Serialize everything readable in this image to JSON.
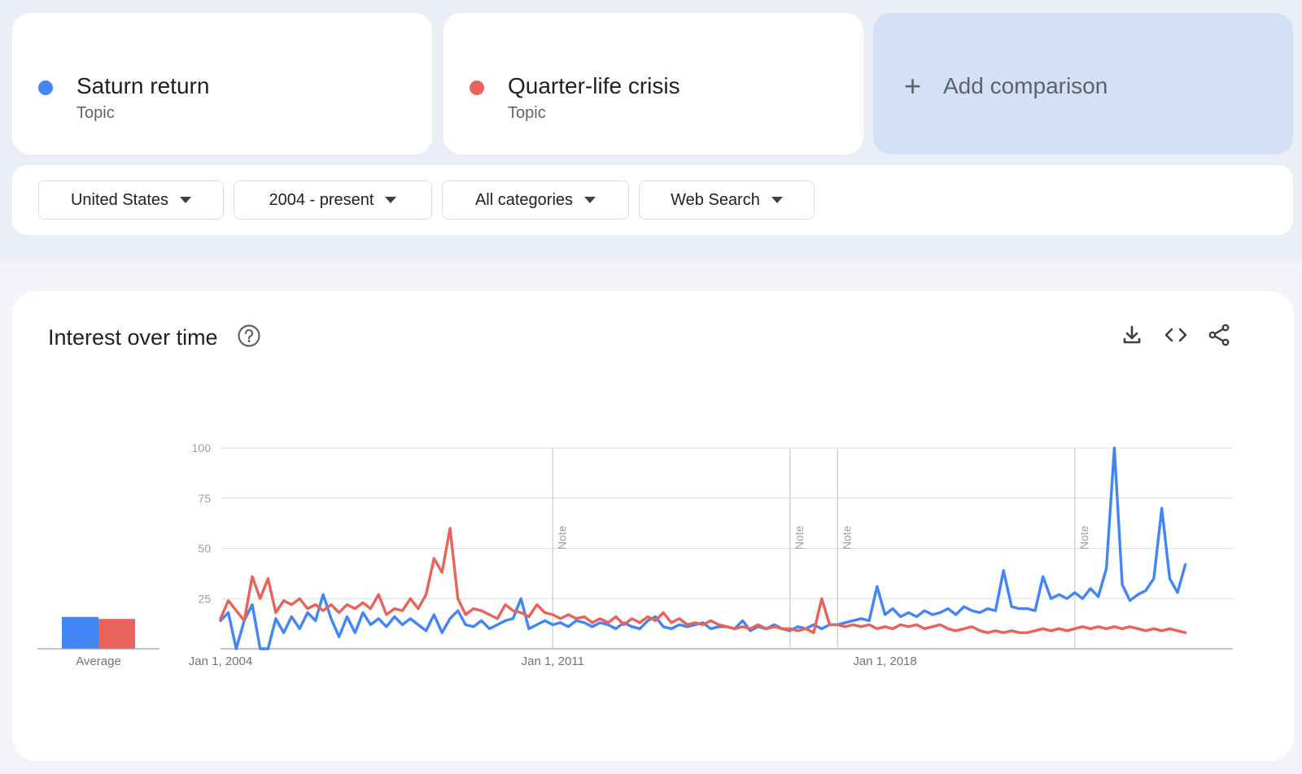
{
  "terms": [
    {
      "name": "Saturn return",
      "type": "Topic",
      "color": "#4285f4"
    },
    {
      "name": "Quarter-life crisis",
      "type": "Topic",
      "color": "#e8635a"
    }
  ],
  "add_comparison": {
    "label": "Add comparison",
    "icon": "plus-icon"
  },
  "filters": [
    {
      "label": "United States",
      "icon": "caret-down-icon"
    },
    {
      "label": "2004 - present",
      "icon": "caret-down-icon"
    },
    {
      "label": "All categories",
      "icon": "caret-down-icon"
    },
    {
      "label": "Web Search",
      "icon": "caret-down-icon"
    }
  ],
  "panel": {
    "title": "Interest over time",
    "icons": [
      "help-icon",
      "download-icon",
      "embed-icon",
      "share-icon"
    ]
  },
  "chart_data": {
    "type": "line",
    "title": "",
    "xlabel": "",
    "ylabel": "",
    "ylim": [
      0,
      100
    ],
    "xlim": [
      "2004-01-01",
      "2025-05-01"
    ],
    "y_ticks": [
      "100",
      "75",
      "50",
      "25"
    ],
    "x_ticks": [
      {
        "label": "Jan 1, 2004",
        "date": "2004-01-01"
      },
      {
        "label": "Jan 1, 2011",
        "date": "2011-01-01"
      },
      {
        "label": "Jan 1, 2018",
        "date": "2018-01-01"
      }
    ],
    "notes": [
      {
        "label": "Note",
        "date": "2011-01-01"
      },
      {
        "label": "Note",
        "date": "2016-01-01"
      },
      {
        "label": "Note",
        "date": "2017-01-01"
      },
      {
        "label": "Note",
        "date": "2022-01-01"
      }
    ],
    "grid": true,
    "legend": "none",
    "average": {
      "label": "Average",
      "values": [
        16,
        15
      ]
    },
    "series": [
      {
        "color": "#4285f4",
        "points": [
          [
            "2004-01-01",
            14
          ],
          [
            "2004-03-01",
            18
          ],
          [
            "2004-05-01",
            0
          ],
          [
            "2004-07-01",
            14
          ],
          [
            "2004-09-01",
            22
          ],
          [
            "2004-11-01",
            0
          ],
          [
            "2005-01-01",
            0
          ],
          [
            "2005-03-01",
            15
          ],
          [
            "2005-05-01",
            8
          ],
          [
            "2005-07-01",
            16
          ],
          [
            "2005-09-01",
            10
          ],
          [
            "2005-11-01",
            18
          ],
          [
            "2006-01-01",
            14
          ],
          [
            "2006-03-01",
            27
          ],
          [
            "2006-05-01",
            15
          ],
          [
            "2006-07-01",
            6
          ],
          [
            "2006-09-01",
            16
          ],
          [
            "2006-11-01",
            8
          ],
          [
            "2007-01-01",
            18
          ],
          [
            "2007-03-01",
            12
          ],
          [
            "2007-05-01",
            15
          ],
          [
            "2007-07-01",
            11
          ],
          [
            "2007-09-01",
            16
          ],
          [
            "2007-11-01",
            12
          ],
          [
            "2008-01-01",
            15
          ],
          [
            "2008-03-01",
            12
          ],
          [
            "2008-05-01",
            9
          ],
          [
            "2008-07-01",
            17
          ],
          [
            "2008-09-01",
            8
          ],
          [
            "2008-11-01",
            15
          ],
          [
            "2009-01-01",
            19
          ],
          [
            "2009-03-01",
            12
          ],
          [
            "2009-05-01",
            11
          ],
          [
            "2009-07-01",
            14
          ],
          [
            "2009-09-01",
            10
          ],
          [
            "2009-11-01",
            12
          ],
          [
            "2010-01-01",
            14
          ],
          [
            "2010-03-01",
            15
          ],
          [
            "2010-05-01",
            25
          ],
          [
            "2010-07-01",
            10
          ],
          [
            "2010-09-01",
            12
          ],
          [
            "2010-11-01",
            14
          ],
          [
            "2011-01-01",
            12
          ],
          [
            "2011-03-01",
            13
          ],
          [
            "2011-05-01",
            11
          ],
          [
            "2011-07-01",
            14
          ],
          [
            "2011-09-01",
            13
          ],
          [
            "2011-11-01",
            11
          ],
          [
            "2012-01-01",
            13
          ],
          [
            "2012-03-01",
            12
          ],
          [
            "2012-05-01",
            10
          ],
          [
            "2012-07-01",
            13
          ],
          [
            "2012-09-01",
            11
          ],
          [
            "2012-11-01",
            10
          ],
          [
            "2013-01-01",
            14
          ],
          [
            "2013-03-01",
            16
          ],
          [
            "2013-05-01",
            11
          ],
          [
            "2013-07-01",
            10
          ],
          [
            "2013-09-01",
            12
          ],
          [
            "2013-11-01",
            11
          ],
          [
            "2014-01-01",
            12
          ],
          [
            "2014-03-01",
            13
          ],
          [
            "2014-05-01",
            10
          ],
          [
            "2014-07-01",
            11
          ],
          [
            "2014-09-01",
            11
          ],
          [
            "2014-11-01",
            10
          ],
          [
            "2015-01-01",
            14
          ],
          [
            "2015-03-01",
            9
          ],
          [
            "2015-05-01",
            11
          ],
          [
            "2015-07-01",
            10
          ],
          [
            "2015-09-01",
            12
          ],
          [
            "2015-11-01",
            10
          ],
          [
            "2016-01-01",
            9
          ],
          [
            "2016-03-01",
            11
          ],
          [
            "2016-05-01",
            10
          ],
          [
            "2016-07-01",
            12
          ],
          [
            "2016-09-01",
            10
          ],
          [
            "2016-11-01",
            12
          ],
          [
            "2017-01-01",
            12
          ],
          [
            "2017-03-01",
            13
          ],
          [
            "2017-05-01",
            14
          ],
          [
            "2017-07-01",
            15
          ],
          [
            "2017-09-01",
            14
          ],
          [
            "2017-11-01",
            31
          ],
          [
            "2018-01-01",
            17
          ],
          [
            "2018-03-01",
            20
          ],
          [
            "2018-05-01",
            16
          ],
          [
            "2018-07-01",
            18
          ],
          [
            "2018-09-01",
            16
          ],
          [
            "2018-11-01",
            19
          ],
          [
            "2019-01-01",
            17
          ],
          [
            "2019-03-01",
            18
          ],
          [
            "2019-05-01",
            20
          ],
          [
            "2019-07-01",
            17
          ],
          [
            "2019-09-01",
            21
          ],
          [
            "2019-11-01",
            19
          ],
          [
            "2020-01-01",
            18
          ],
          [
            "2020-03-01",
            20
          ],
          [
            "2020-05-01",
            19
          ],
          [
            "2020-07-01",
            39
          ],
          [
            "2020-09-01",
            21
          ],
          [
            "2020-11-01",
            20
          ],
          [
            "2021-01-01",
            20
          ],
          [
            "2021-03-01",
            19
          ],
          [
            "2021-05-01",
            36
          ],
          [
            "2021-07-01",
            25
          ],
          [
            "2021-09-01",
            27
          ],
          [
            "2021-11-01",
            25
          ],
          [
            "2022-01-01",
            28
          ],
          [
            "2022-03-01",
            25
          ],
          [
            "2022-05-01",
            30
          ],
          [
            "2022-07-01",
            26
          ],
          [
            "2022-09-01",
            40
          ],
          [
            "2022-11-01",
            100
          ],
          [
            "2023-01-01",
            32
          ],
          [
            "2023-03-01",
            24
          ],
          [
            "2023-05-01",
            27
          ],
          [
            "2023-07-01",
            29
          ],
          [
            "2023-09-01",
            35
          ],
          [
            "2023-11-01",
            70
          ],
          [
            "2024-01-01",
            35
          ],
          [
            "2024-03-01",
            28
          ],
          [
            "2024-05-01",
            42
          ]
        ]
      },
      {
        "color": "#e8635a",
        "points": [
          [
            "2004-01-01",
            15
          ],
          [
            "2004-03-01",
            24
          ],
          [
            "2004-05-01",
            19
          ],
          [
            "2004-07-01",
            14
          ],
          [
            "2004-09-01",
            36
          ],
          [
            "2004-11-01",
            25
          ],
          [
            "2005-01-01",
            35
          ],
          [
            "2005-03-01",
            18
          ],
          [
            "2005-05-01",
            24
          ],
          [
            "2005-07-01",
            22
          ],
          [
            "2005-09-01",
            25
          ],
          [
            "2005-11-01",
            20
          ],
          [
            "2006-01-01",
            22
          ],
          [
            "2006-03-01",
            19
          ],
          [
            "2006-05-01",
            22
          ],
          [
            "2006-07-01",
            18
          ],
          [
            "2006-09-01",
            22
          ],
          [
            "2006-11-01",
            20
          ],
          [
            "2007-01-01",
            23
          ],
          [
            "2007-03-01",
            20
          ],
          [
            "2007-05-01",
            27
          ],
          [
            "2007-07-01",
            17
          ],
          [
            "2007-09-01",
            20
          ],
          [
            "2007-11-01",
            19
          ],
          [
            "2008-01-01",
            25
          ],
          [
            "2008-03-01",
            20
          ],
          [
            "2008-05-01",
            27
          ],
          [
            "2008-07-01",
            45
          ],
          [
            "2008-09-01",
            38
          ],
          [
            "2008-11-01",
            60
          ],
          [
            "2009-01-01",
            25
          ],
          [
            "2009-03-01",
            17
          ],
          [
            "2009-05-01",
            20
          ],
          [
            "2009-07-01",
            19
          ],
          [
            "2009-09-01",
            17
          ],
          [
            "2009-11-01",
            15
          ],
          [
            "2010-01-01",
            22
          ],
          [
            "2010-03-01",
            19
          ],
          [
            "2010-05-01",
            18
          ],
          [
            "2010-07-01",
            16
          ],
          [
            "2010-09-01",
            22
          ],
          [
            "2010-11-01",
            18
          ],
          [
            "2011-01-01",
            17
          ],
          [
            "2011-03-01",
            15
          ],
          [
            "2011-05-01",
            17
          ],
          [
            "2011-07-01",
            15
          ],
          [
            "2011-09-01",
            16
          ],
          [
            "2011-11-01",
            13
          ],
          [
            "2012-01-01",
            15
          ],
          [
            "2012-03-01",
            13
          ],
          [
            "2012-05-01",
            16
          ],
          [
            "2012-07-01",
            12
          ],
          [
            "2012-09-01",
            15
          ],
          [
            "2012-11-01",
            13
          ],
          [
            "2013-01-01",
            16
          ],
          [
            "2013-03-01",
            14
          ],
          [
            "2013-05-01",
            18
          ],
          [
            "2013-07-01",
            13
          ],
          [
            "2013-09-01",
            15
          ],
          [
            "2013-11-01",
            12
          ],
          [
            "2014-01-01",
            13
          ],
          [
            "2014-03-01",
            12
          ],
          [
            "2014-05-01",
            14
          ],
          [
            "2014-07-01",
            12
          ],
          [
            "2014-09-01",
            11
          ],
          [
            "2014-11-01",
            10
          ],
          [
            "2015-01-01",
            11
          ],
          [
            "2015-03-01",
            10
          ],
          [
            "2015-05-01",
            12
          ],
          [
            "2015-07-01",
            10
          ],
          [
            "2015-09-01",
            11
          ],
          [
            "2015-11-01",
            10
          ],
          [
            "2016-01-01",
            10
          ],
          [
            "2016-03-01",
            9
          ],
          [
            "2016-05-01",
            10
          ],
          [
            "2016-07-01",
            8
          ],
          [
            "2016-09-01",
            25
          ],
          [
            "2016-11-01",
            12
          ],
          [
            "2017-01-01",
            12
          ],
          [
            "2017-03-01",
            11
          ],
          [
            "2017-05-01",
            12
          ],
          [
            "2017-07-01",
            11
          ],
          [
            "2017-09-01",
            12
          ],
          [
            "2017-11-01",
            10
          ],
          [
            "2018-01-01",
            11
          ],
          [
            "2018-03-01",
            10
          ],
          [
            "2018-05-01",
            12
          ],
          [
            "2018-07-01",
            11
          ],
          [
            "2018-09-01",
            12
          ],
          [
            "2018-11-01",
            10
          ],
          [
            "2019-01-01",
            11
          ],
          [
            "2019-03-01",
            12
          ],
          [
            "2019-05-01",
            10
          ],
          [
            "2019-07-01",
            9
          ],
          [
            "2019-09-01",
            10
          ],
          [
            "2019-11-01",
            11
          ],
          [
            "2020-01-01",
            9
          ],
          [
            "2020-03-01",
            8
          ],
          [
            "2020-05-01",
            9
          ],
          [
            "2020-07-01",
            8
          ],
          [
            "2020-09-01",
            9
          ],
          [
            "2020-11-01",
            8
          ],
          [
            "2021-01-01",
            8
          ],
          [
            "2021-03-01",
            9
          ],
          [
            "2021-05-01",
            10
          ],
          [
            "2021-07-01",
            9
          ],
          [
            "2021-09-01",
            10
          ],
          [
            "2021-11-01",
            9
          ],
          [
            "2022-01-01",
            10
          ],
          [
            "2022-03-01",
            11
          ],
          [
            "2022-05-01",
            10
          ],
          [
            "2022-07-01",
            11
          ],
          [
            "2022-09-01",
            10
          ],
          [
            "2022-11-01",
            11
          ],
          [
            "2023-01-01",
            10
          ],
          [
            "2023-03-01",
            11
          ],
          [
            "2023-05-01",
            10
          ],
          [
            "2023-07-01",
            9
          ],
          [
            "2023-09-01",
            10
          ],
          [
            "2023-11-01",
            9
          ],
          [
            "2024-01-01",
            10
          ],
          [
            "2024-03-01",
            9
          ],
          [
            "2024-05-01",
            8
          ]
        ]
      }
    ]
  }
}
